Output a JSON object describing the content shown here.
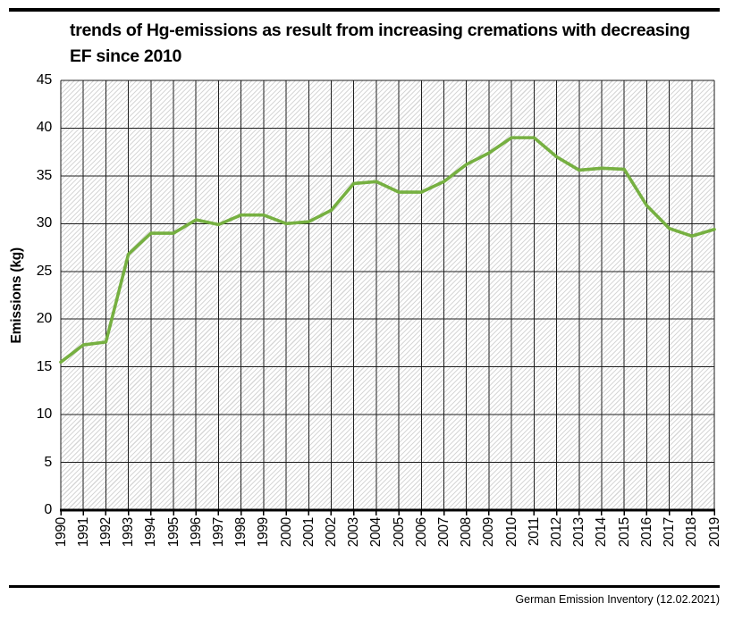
{
  "page": {
    "title_lines": [
      "trends of Hg-emissions as result from increasing cremations with decreasing",
      "EF since 2010"
    ],
    "footer": "German Emission Inventory (12.02.2021)"
  },
  "colors": {
    "line": "#76b041",
    "grid": "#1f1f1f",
    "axis": "#000000",
    "hatch": "#d7d7d7",
    "divider_bars": "#000000"
  },
  "chart_data": {
    "type": "line",
    "title": "trends of Hg-emissions as result from increasing cremations with decreasing EF since 2010",
    "xlabel": "",
    "ylabel": "Emissions (kg)",
    "ylim": [
      0,
      45
    ],
    "y_tick_step": 5,
    "grid": true,
    "legend_position": "none",
    "plot_background": "diagonal-hatch",
    "categories": [
      "1990",
      "1991",
      "1992",
      "1993",
      "1994",
      "1995",
      "1996",
      "1997",
      "1998",
      "1999",
      "2000",
      "2001",
      "2002",
      "2003",
      "2004",
      "2005",
      "2006",
      "2007",
      "2008",
      "2009",
      "2010",
      "2011",
      "2012",
      "2013",
      "2014",
      "2015",
      "2016",
      "2017",
      "2018",
      "2019"
    ],
    "values": [
      15.5,
      17.3,
      17.6,
      26.8,
      29.0,
      29.0,
      30.4,
      29.9,
      30.9,
      30.9,
      30.0,
      30.2,
      31.4,
      34.2,
      34.4,
      33.3,
      33.3,
      34.4,
      36.2,
      37.4,
      39.0,
      39.0,
      37.0,
      35.6,
      35.8,
      35.7,
      31.9,
      29.5,
      28.7,
      29.4
    ]
  }
}
